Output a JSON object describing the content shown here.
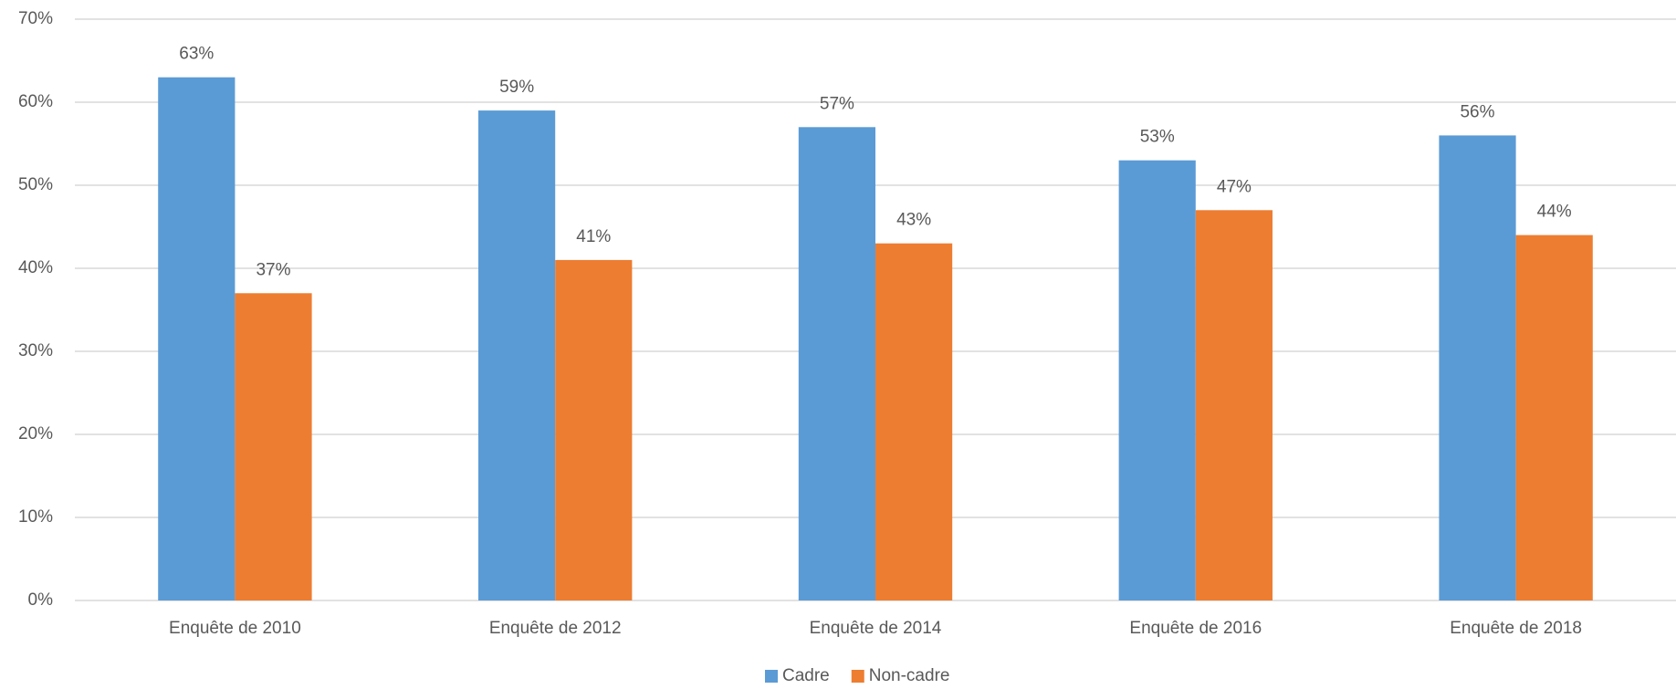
{
  "chart_data": {
    "type": "bar",
    "categories": [
      "Enquête de 2010",
      "Enquête de 2012",
      "Enquête de 2014",
      "Enquête de 2016",
      "Enquête de 2018"
    ],
    "series": [
      {
        "name": "Cadre",
        "color": "#5b9bd5",
        "values": [
          63,
          59,
          57,
          53,
          56
        ],
        "value_labels": [
          "63%",
          "59%",
          "57%",
          "53%",
          "56%"
        ]
      },
      {
        "name": "Non-cadre",
        "color": "#ed7d31",
        "values": [
          37,
          41,
          43,
          47,
          44
        ],
        "value_labels": [
          "37%",
          "41%",
          "43%",
          "47%",
          "44%"
        ]
      }
    ],
    "ylim": [
      0,
      70
    ],
    "yticks": [
      {
        "value": 0,
        "label": "0%"
      },
      {
        "value": 10,
        "label": "10%"
      },
      {
        "value": 20,
        "label": "20%"
      },
      {
        "value": 30,
        "label": "30%"
      },
      {
        "value": 40,
        "label": "40%"
      },
      {
        "value": 50,
        "label": "50%"
      },
      {
        "value": 60,
        "label": "60%"
      },
      {
        "value": 70,
        "label": "70%"
      }
    ],
    "grid": true,
    "legend": "bottom"
  }
}
